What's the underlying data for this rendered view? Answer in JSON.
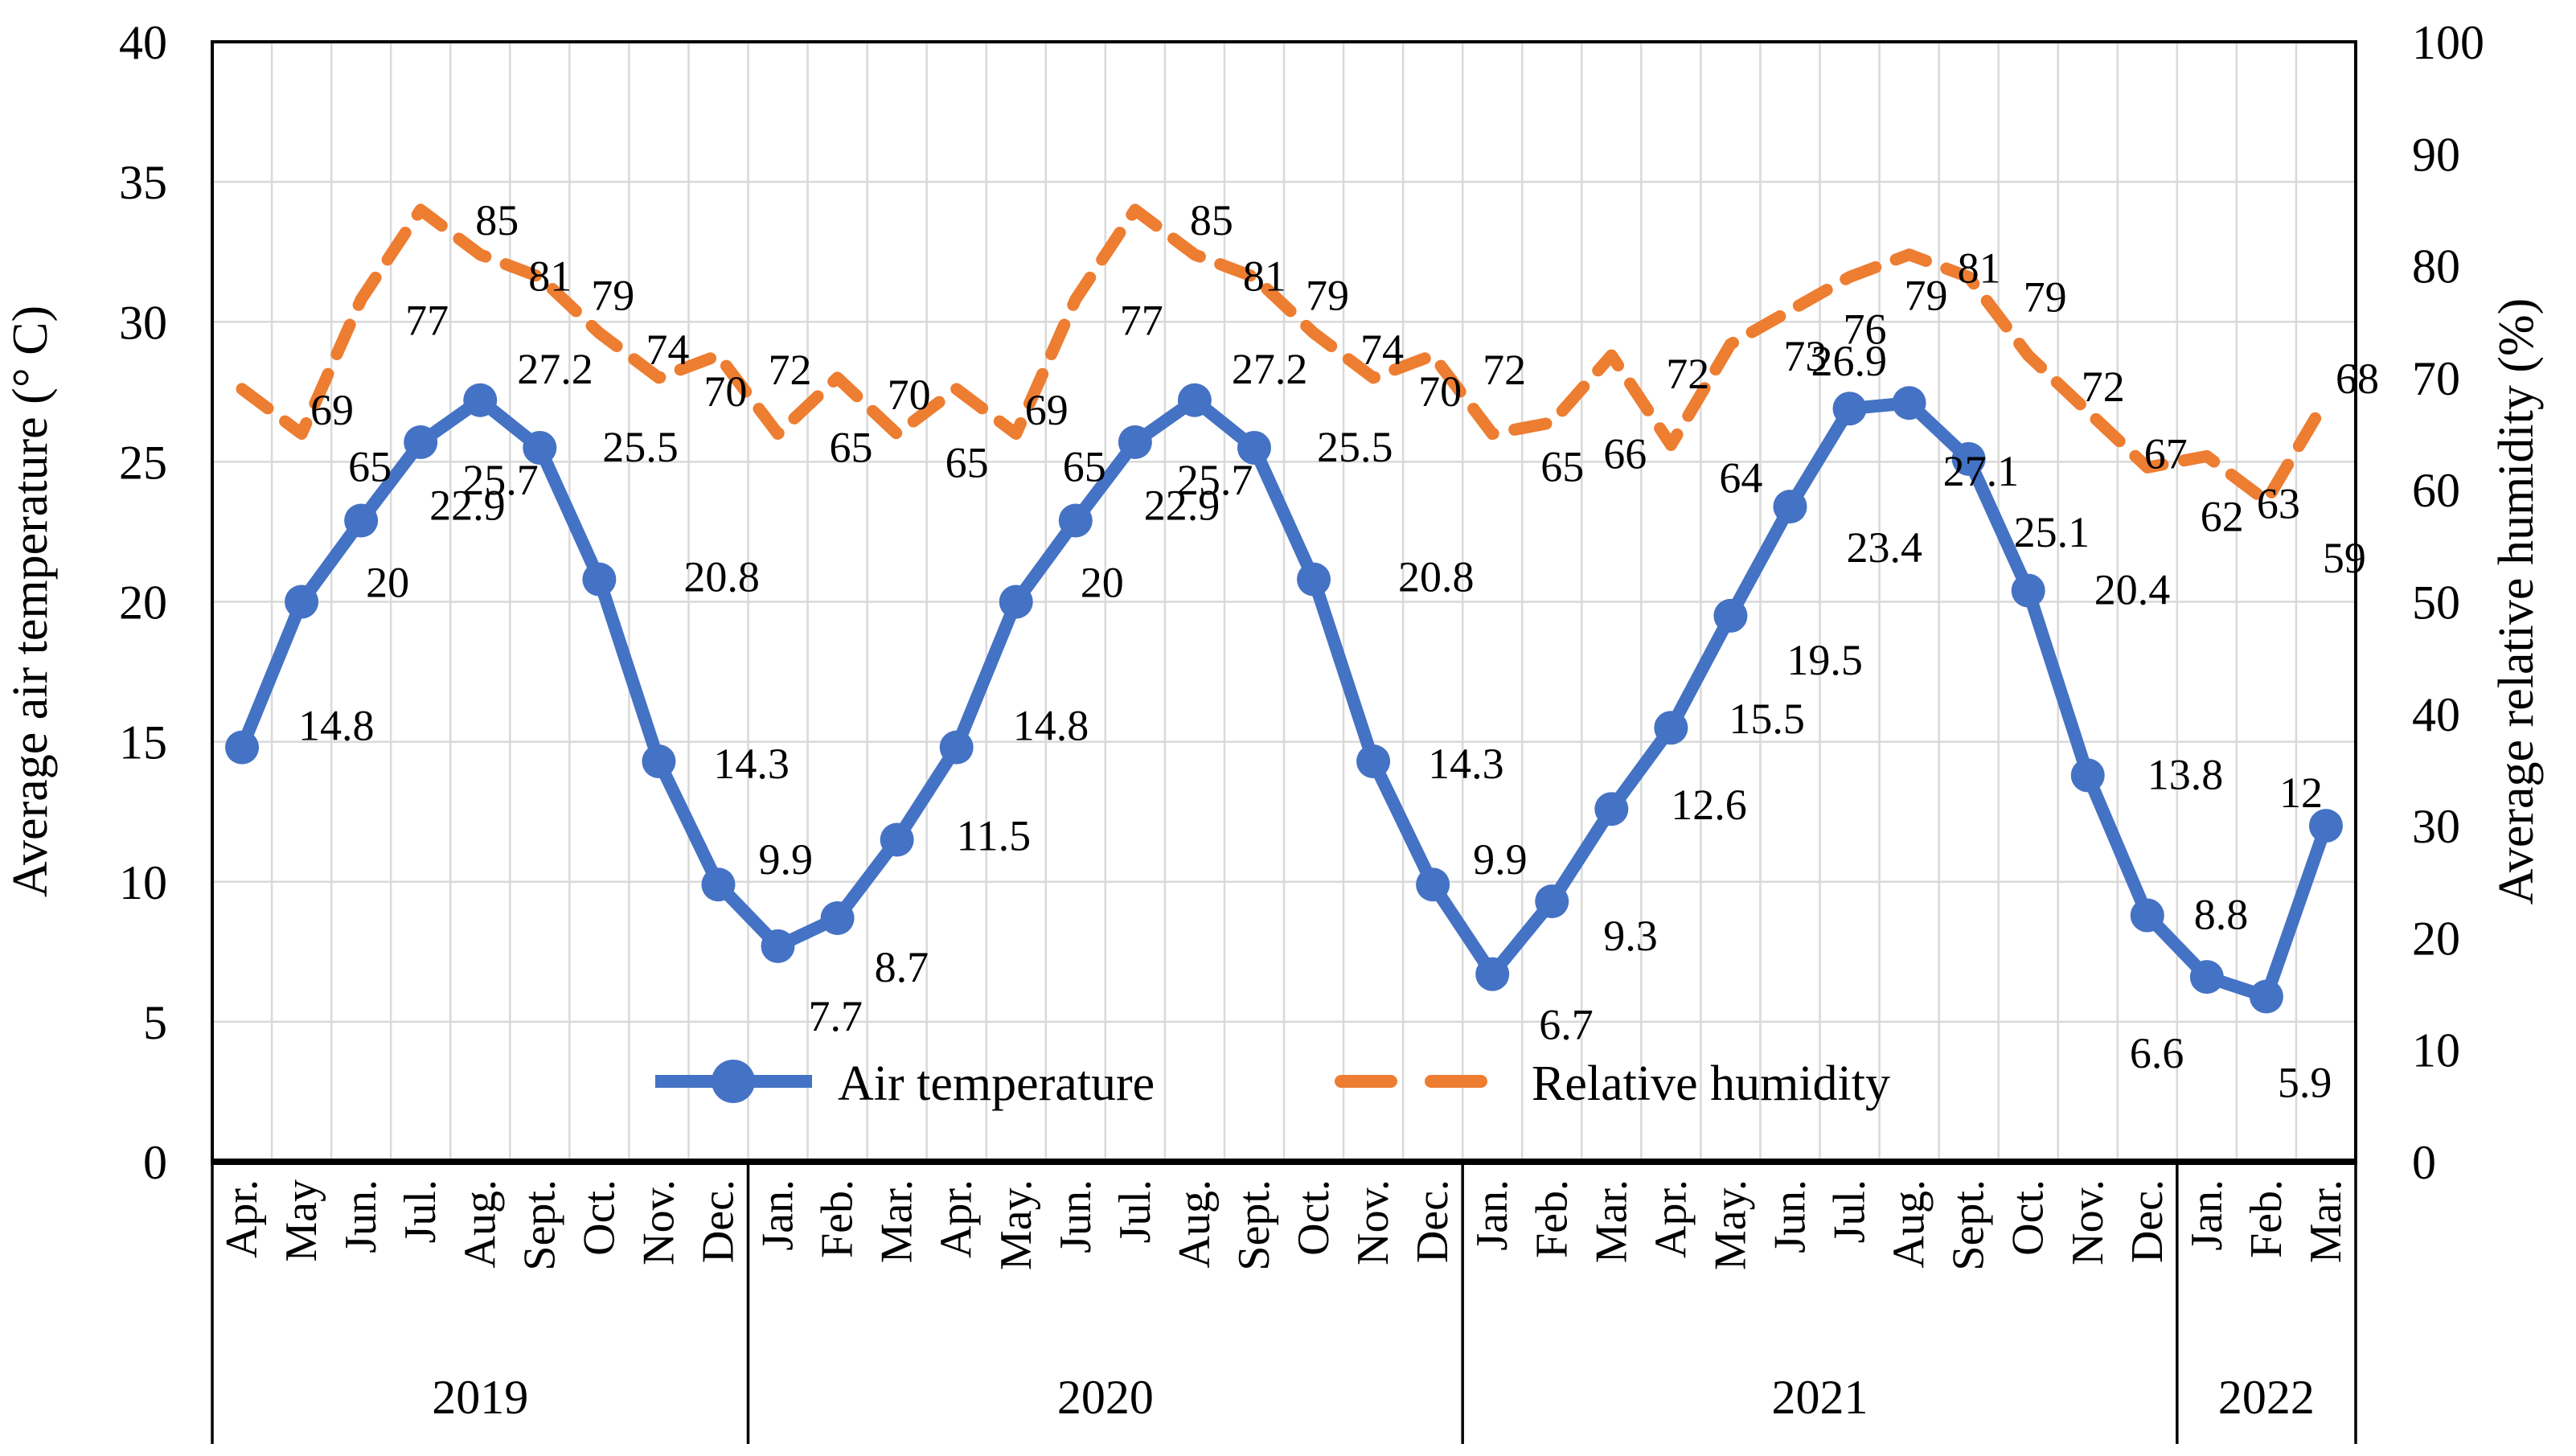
{
  "chart_data": {
    "type": "line",
    "title": "",
    "x_axis": {
      "groups": [
        {
          "year": "2019",
          "months": [
            "Apr.",
            "May",
            "Jun.",
            "Jul.",
            "Aug.",
            "Sept.",
            "Oct.",
            "Nov.",
            "Dec."
          ]
        },
        {
          "year": "2020",
          "months": [
            "Jan.",
            "Feb.",
            "Mar.",
            "Apr.",
            "May.",
            "Jun.",
            "Jul.",
            "Aug.",
            "Sept.",
            "Oct.",
            "Nov.",
            "Dec."
          ]
        },
        {
          "year": "2021",
          "months": [
            "Jan.",
            "Feb.",
            "Mar.",
            "Apr.",
            "May.",
            "Jun.",
            "Jul.",
            "Aug.",
            "Sept.",
            "Oct.",
            "Nov.",
            "Dec."
          ]
        },
        {
          "year": "2022",
          "months": [
            "Jan.",
            "Feb.",
            "Mar."
          ]
        }
      ]
    },
    "left_axis": {
      "title": "Average air temperature (° C)",
      "min": 0,
      "max": 40,
      "step": 5
    },
    "right_axis": {
      "title": "Average relative humidity (%)",
      "min": 0,
      "max": 100,
      "step": 10
    },
    "grid": {
      "color": "#D9D9D9",
      "vertical": true,
      "horizontal": true
    },
    "series": [
      {
        "name": "Air temperature",
        "axis": "left",
        "color": "#4472C4",
        "line_style": "solid",
        "marker": "circle",
        "values": [
          14.8,
          20,
          22.9,
          25.7,
          27.2,
          25.5,
          20.8,
          14.3,
          9.9,
          7.7,
          8.7,
          11.5,
          14.8,
          20,
          22.9,
          25.7,
          27.2,
          25.5,
          20.8,
          14.3,
          9.9,
          6.7,
          9.3,
          12.6,
          15.5,
          19.5,
          23.4,
          26.9,
          27.1,
          25.1,
          20.4,
          13.8,
          8.8,
          6.6,
          5.9,
          12
        ]
      },
      {
        "name": "Relative humidity",
        "axis": "right",
        "color": "#ED7D31",
        "line_style": "dashed",
        "marker": "none",
        "values": [
          69,
          65,
          77,
          85,
          81,
          79,
          74,
          70,
          72,
          65,
          70,
          65,
          69,
          65,
          77,
          85,
          81,
          79,
          74,
          70,
          72,
          65,
          66,
          72,
          64,
          73,
          76,
          79,
          81,
          79,
          72,
          67,
          62,
          63,
          59,
          68
        ]
      }
    ],
    "legend": {
      "position": "bottom-inside",
      "entries": [
        "Air temperature",
        "Relative humidity"
      ]
    }
  },
  "colors": {
    "background": "#FFFFFF",
    "axis": "#000000",
    "text": "#000000"
  }
}
